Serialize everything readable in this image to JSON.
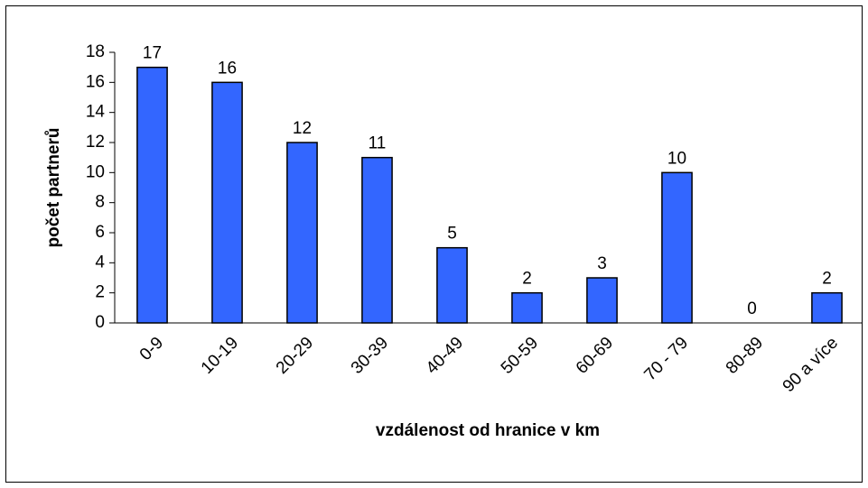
{
  "chart_data": {
    "type": "bar",
    "x_label": "vzdálenost od hranice v km",
    "y_label": "počet partnerů",
    "categories": [
      "0-9",
      "10-19",
      "20-29",
      "30-39",
      "40-49",
      "50-59",
      "60-69",
      "70 - 79",
      "80-89",
      "90 a více"
    ],
    "values": [
      17,
      16,
      12,
      11,
      5,
      2,
      3,
      10,
      0,
      2
    ],
    "color": "#3366ff",
    "ylim": [
      0,
      18
    ],
    "yticks": [
      0,
      2,
      4,
      6,
      8,
      10,
      12,
      14,
      16,
      18
    ],
    "grid": false
  }
}
